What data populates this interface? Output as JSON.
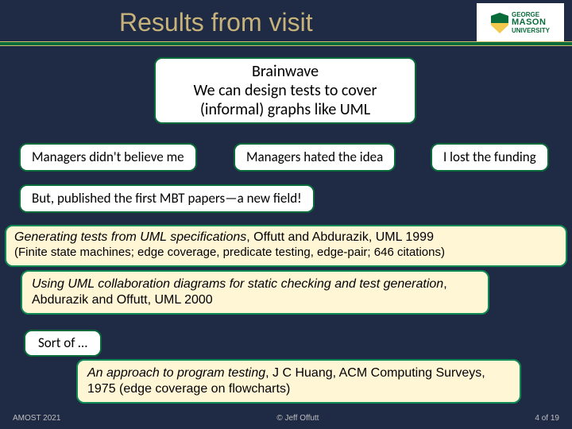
{
  "colors": {
    "background": "#1f2a44",
    "title_text": "#c7b27a",
    "rule_green": "#0a6b3a",
    "rule_border": "#d0c070",
    "box_border": "#0a6b3a",
    "cream_bg": "#fff6d6",
    "white_bg": "#ffffff",
    "footer_text": "#bfbfbf"
  },
  "header": {
    "title": "Results from visit",
    "logo": {
      "line1": "GEORGE",
      "line2": "MASON",
      "line3": "UNIVERSITY"
    }
  },
  "boxes": {
    "brainwave": {
      "line1": "Brainwave",
      "line2": "We can design tests to cover",
      "line3": "(informal) graphs like UML"
    },
    "managers_no": "Managers didn't believe me",
    "managers_hate": "Managers hated the idea",
    "lost_funding": "I lost the funding",
    "mbt_papers": "But, published the first MBT papers—a new field!",
    "gen99": {
      "title_italic": "Generating tests from UML specifications",
      "authors": ", Offutt and Abdurazik, UML 1999",
      "sub": "(Finite state machines; edge coverage, predicate testing, edge-pair; 646 citations)"
    },
    "uml2000": {
      "title_italic": "Using UML collaboration diagrams for static checking and test generation",
      "authors": ", Abdurazik and Offutt, UML 2000"
    },
    "sortof": "Sort of …",
    "huang": {
      "title_italic": "An approach to program testing",
      "rest": ", J C Huang, ACM Computing Surveys, 1975 (edge coverage on flowcharts)"
    }
  },
  "footer": {
    "left": "AMOST 2021",
    "center": "© Jeff Offutt",
    "right": "4 of 19"
  }
}
